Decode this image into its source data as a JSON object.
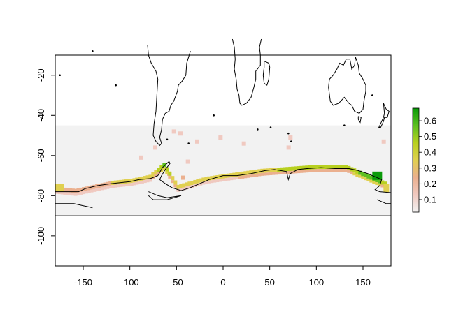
{
  "chart_data": {
    "type": "heatmap",
    "title": "",
    "xlabel": "",
    "ylabel": "",
    "xlim": [
      -180,
      180
    ],
    "ylim": [
      -115,
      -10
    ],
    "x_ticks": [
      -150,
      -100,
      -50,
      0,
      50,
      100,
      150
    ],
    "y_ticks": [
      -20,
      -40,
      -60,
      -80,
      -100
    ],
    "raster_extent": {
      "lon": [
        -180,
        180
      ],
      "lat": [
        -90,
        -45
      ]
    },
    "horizontal_reference_line_lat": -90,
    "legend": {
      "placement": "right",
      "ticks": [
        0.1,
        0.2,
        0.3,
        0.4,
        0.5,
        0.6
      ],
      "range": [
        0.02,
        0.68
      ],
      "colors": [
        "#f2f2f2",
        "#f0c9c0",
        "#ebb08f",
        "#e0d050",
        "#b8d020",
        "#5cbf20",
        "#0a9a0a"
      ]
    },
    "coastline_high_value_band": [
      {
        "lon": -180,
        "lat": -77,
        "value": 0.3
      },
      {
        "lon": -160,
        "lat": -78,
        "value": 0.25
      },
      {
        "lon": -140,
        "lat": -76,
        "value": 0.25
      },
      {
        "lon": -120,
        "lat": -74,
        "value": 0.3
      },
      {
        "lon": -100,
        "lat": -73,
        "value": 0.3
      },
      {
        "lon": -80,
        "lat": -71,
        "value": 0.3
      },
      {
        "lon": -65,
        "lat": -65,
        "value": 0.55
      },
      {
        "lon": -50,
        "lat": -76,
        "value": 0.3
      },
      {
        "lon": -20,
        "lat": -72,
        "value": 0.3
      },
      {
        "lon": 10,
        "lat": -70,
        "value": 0.3
      },
      {
        "lon": 40,
        "lat": -68,
        "value": 0.35
      },
      {
        "lon": 70,
        "lat": -67,
        "value": 0.45
      },
      {
        "lon": 100,
        "lat": -66,
        "value": 0.45
      },
      {
        "lon": 130,
        "lat": -66,
        "value": 0.45
      },
      {
        "lon": 160,
        "lat": -72,
        "value": 0.6
      },
      {
        "lon": 175,
        "lat": -75,
        "value": 0.4
      }
    ]
  }
}
